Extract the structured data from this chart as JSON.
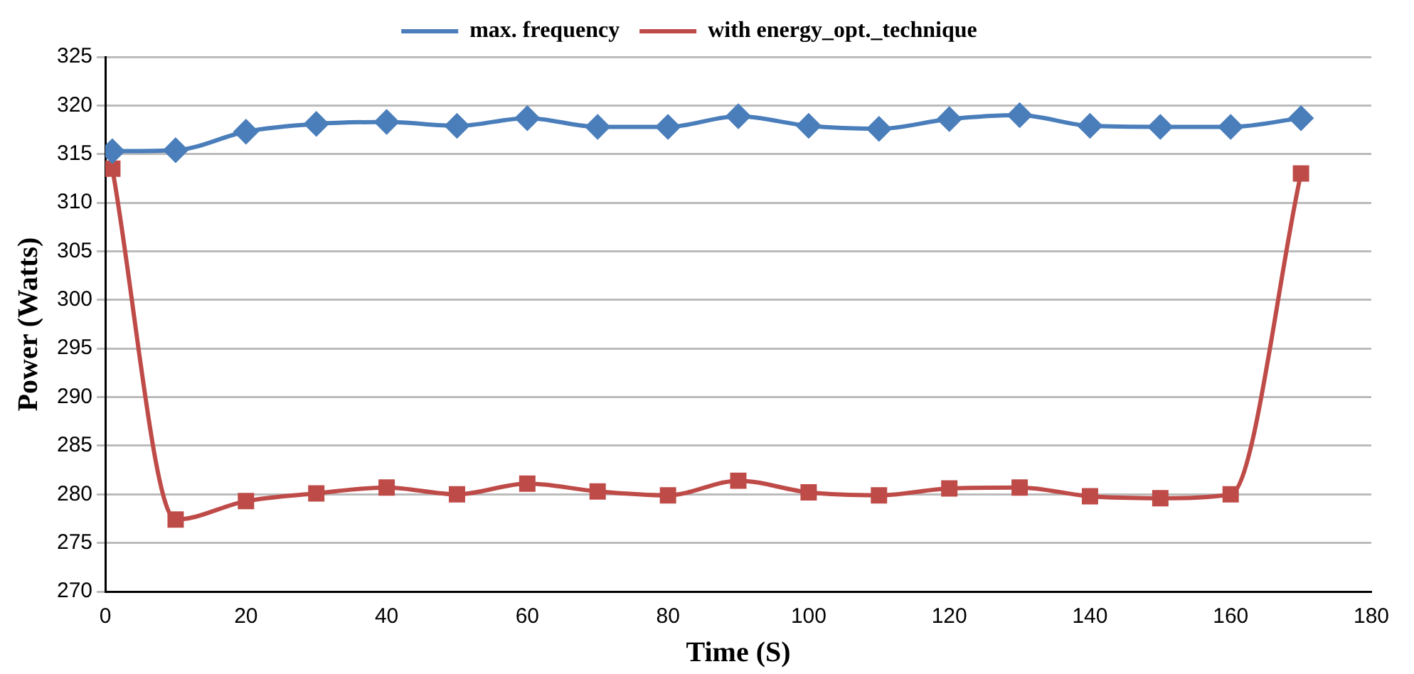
{
  "chart_data": {
    "type": "line",
    "xlabel": "Time (S)",
    "ylabel": "Power (Watts)",
    "x": [
      1,
      10,
      20,
      30,
      40,
      50,
      60,
      70,
      80,
      90,
      100,
      110,
      120,
      130,
      140,
      150,
      160,
      170
    ],
    "series": [
      {
        "name": "max. frequency",
        "color": "#4a7ebb",
        "marker": "diamond",
        "values": [
          315.3,
          315.4,
          317.3,
          318.1,
          318.3,
          317.9,
          318.7,
          317.8,
          317.8,
          318.9,
          317.9,
          317.6,
          318.6,
          319.0,
          317.9,
          317.8,
          317.8,
          318.7
        ]
      },
      {
        "name": "with energy_opt._technique",
        "color": "#be4b48",
        "marker": "square",
        "values": [
          313.5,
          277.4,
          279.3,
          280.1,
          280.7,
          280.0,
          281.1,
          280.3,
          279.9,
          281.4,
          280.2,
          279.9,
          280.6,
          280.7,
          279.8,
          279.6,
          280.0,
          313.0
        ]
      }
    ],
    "xlim": [
      0,
      180
    ],
    "xticks": [
      0,
      20,
      40,
      60,
      80,
      100,
      120,
      140,
      160,
      180
    ],
    "ylim": [
      270,
      325
    ],
    "yticks": [
      270,
      275,
      280,
      285,
      290,
      295,
      300,
      305,
      310,
      315,
      320,
      325
    ],
    "grid": "y",
    "legend": "top"
  }
}
